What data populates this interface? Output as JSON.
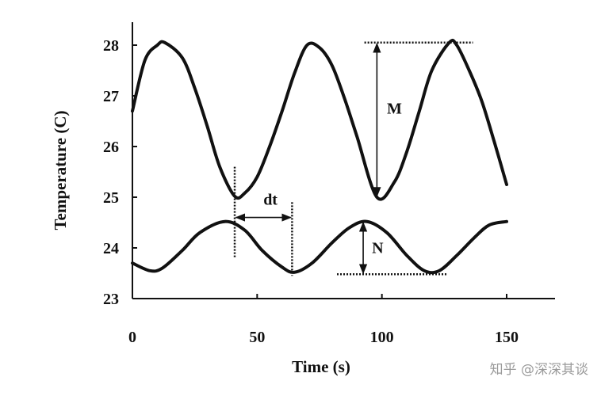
{
  "chart_data": {
    "type": "line",
    "title": "",
    "xlabel": "Time (s)",
    "ylabel": "Temperature (C)",
    "xlim": [
      0,
      170
    ],
    "ylim": [
      23,
      28.2
    ],
    "x_ticks": [
      0,
      50,
      100,
      150
    ],
    "y_ticks": [
      23,
      24,
      25,
      26,
      27,
      28
    ],
    "x_tick_labels": [
      "0",
      "50",
      "100",
      "150"
    ],
    "y_tick_labels": [
      "23",
      "24",
      "25",
      "26",
      "27",
      "28"
    ],
    "grid": false,
    "series": [
      {
        "x": [
          0,
          5,
          10,
          13,
          20,
          25,
          30,
          35,
          41,
          45,
          50,
          55,
          60,
          65,
          70,
          75,
          80,
          85,
          90,
          98,
          105,
          110,
          115,
          120,
          127,
          130,
          135,
          140,
          145,
          150
        ],
        "values": [
          26.7,
          27.7,
          28.0,
          28.05,
          27.75,
          27.15,
          26.4,
          25.6,
          25.02,
          25.08,
          25.4,
          26.0,
          26.7,
          27.45,
          28.0,
          27.95,
          27.6,
          26.95,
          26.2,
          25.0,
          25.3,
          25.9,
          26.7,
          27.5,
          28.05,
          28.0,
          27.5,
          26.9,
          26.1,
          25.25
        ]
      },
      {
        "x": [
          0,
          7,
          12,
          20,
          27,
          37,
          45,
          52,
          60,
          65,
          72,
          80,
          87,
          94,
          102,
          110,
          117,
          123,
          130,
          137,
          143,
          150
        ],
        "values": [
          23.7,
          23.55,
          23.6,
          23.95,
          24.3,
          24.52,
          24.35,
          23.95,
          23.62,
          23.52,
          23.7,
          24.1,
          24.4,
          24.52,
          24.3,
          23.85,
          23.55,
          23.55,
          23.85,
          24.2,
          24.45,
          24.52
        ]
      }
    ],
    "annotations": [
      {
        "text": "M",
        "x": 102,
        "y": 26.65
      },
      {
        "text": "N",
        "x": 96,
        "y": 23.9
      },
      {
        "text": "dt",
        "x": 52.5,
        "y": 24.85
      }
    ]
  },
  "watermark": "知乎 @深深其谈"
}
